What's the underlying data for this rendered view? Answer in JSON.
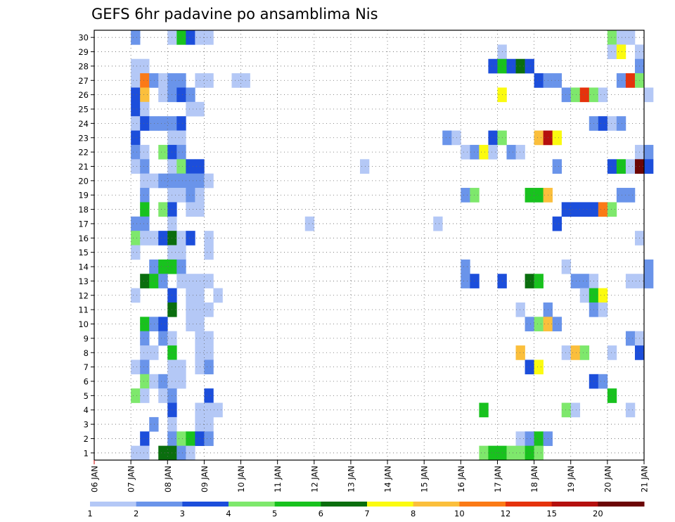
{
  "chart_data": {
    "type": "heatmap",
    "title": "GEFS 6hr padavine po ansamblima Nis",
    "xlabel": "",
    "ylabel": "",
    "x_ticks": [
      "06 JAN",
      "07 JAN",
      "08 JAN",
      "09 JAN",
      "10 JAN",
      "11 JAN",
      "12 JAN",
      "13 JAN",
      "14 JAN",
      "15 JAN",
      "16 JAN",
      "17 JAN",
      "18 JAN",
      "19 JAN",
      "20 JAN",
      "21 JAN"
    ],
    "y_ticks": [
      "1",
      "2",
      "3",
      "4",
      "5",
      "6",
      "7",
      "8",
      "9",
      "10",
      "11",
      "12",
      "13",
      "14",
      "15",
      "16",
      "17",
      "18",
      "19",
      "20",
      "21",
      "22",
      "23",
      "24",
      "25",
      "26",
      "27",
      "28",
      "29",
      "30"
    ],
    "xlim": [
      0,
      60
    ],
    "ylim": [
      0,
      30
    ],
    "x_unit": "6-hour steps from 06 JAN 00Z",
    "grid": true,
    "colorbar_position": "bottom",
    "colorbar": {
      "labels": [
        "1",
        "2",
        "3",
        "4",
        "5",
        "6",
        "7",
        "8",
        "10",
        "12",
        "15",
        "20"
      ],
      "colors": [
        "#b4c8f6",
        "#6a94ea",
        "#1c4edb",
        "#7ee86c",
        "#18c21e",
        "#0a6e0e",
        "#fbfb10",
        "#fbbf3c",
        "#fb7a16",
        "#e5320c",
        "#b5100e",
        "#6c0606"
      ]
    },
    "cells": [
      [
        4,
        30,
        "#6a94ea"
      ],
      [
        8,
        30,
        "#b4c8f6"
      ],
      [
        9,
        30,
        "#18c21e"
      ],
      [
        10,
        30,
        "#1c4edb"
      ],
      [
        11,
        30,
        "#b4c8f6"
      ],
      [
        12,
        30,
        "#b4c8f6"
      ],
      [
        56,
        30,
        "#7ee86c"
      ],
      [
        57,
        30,
        "#b4c8f6"
      ],
      [
        58,
        30,
        "#b4c8f6"
      ],
      [
        44,
        29,
        "#b4c8f6"
      ],
      [
        56,
        29,
        "#b4c8f6"
      ],
      [
        57,
        29,
        "#fbfb10"
      ],
      [
        59,
        29,
        "#b4c8f6"
      ],
      [
        4,
        28,
        "#b4c8f6"
      ],
      [
        5,
        28,
        "#b4c8f6"
      ],
      [
        43,
        28,
        "#1c4edb"
      ],
      [
        44,
        28,
        "#18c21e"
      ],
      [
        45,
        28,
        "#1c4edb"
      ],
      [
        46,
        28,
        "#0a6e0e"
      ],
      [
        47,
        28,
        "#1c4edb"
      ],
      [
        59,
        28,
        "#6a94ea"
      ],
      [
        4,
        27,
        "#b4c8f6"
      ],
      [
        5,
        27,
        "#fb7a16"
      ],
      [
        6,
        27,
        "#6a94ea"
      ],
      [
        7,
        27,
        "#b4c8f6"
      ],
      [
        8,
        27,
        "#6a94ea"
      ],
      [
        9,
        27,
        "#6a94ea"
      ],
      [
        11,
        27,
        "#b4c8f6"
      ],
      [
        12,
        27,
        "#b4c8f6"
      ],
      [
        15,
        27,
        "#b4c8f6"
      ],
      [
        16,
        27,
        "#b4c8f6"
      ],
      [
        48,
        27,
        "#1c4edb"
      ],
      [
        49,
        27,
        "#6a94ea"
      ],
      [
        50,
        27,
        "#6a94ea"
      ],
      [
        57,
        27,
        "#6a94ea"
      ],
      [
        58,
        27,
        "#e5320c"
      ],
      [
        59,
        27,
        "#7ee86c"
      ],
      [
        4,
        26,
        "#1c4edb"
      ],
      [
        5,
        26,
        "#fbbf3c"
      ],
      [
        7,
        26,
        "#b4c8f6"
      ],
      [
        8,
        26,
        "#6a94ea"
      ],
      [
        9,
        26,
        "#1c4edb"
      ],
      [
        10,
        26,
        "#6a94ea"
      ],
      [
        44,
        26,
        "#fbfb10"
      ],
      [
        51,
        26,
        "#6a94ea"
      ],
      [
        52,
        26,
        "#7ee86c"
      ],
      [
        53,
        26,
        "#e5320c"
      ],
      [
        54,
        26,
        "#7ee86c"
      ],
      [
        55,
        26,
        "#b4c8f6"
      ],
      [
        60,
        26,
        "#b4c8f6"
      ],
      [
        4,
        25,
        "#1c4edb"
      ],
      [
        5,
        25,
        "#b4c8f6"
      ],
      [
        10,
        25,
        "#b4c8f6"
      ],
      [
        11,
        25,
        "#b4c8f6"
      ],
      [
        4,
        24,
        "#b4c8f6"
      ],
      [
        5,
        24,
        "#1c4edb"
      ],
      [
        6,
        24,
        "#6a94ea"
      ],
      [
        7,
        24,
        "#6a94ea"
      ],
      [
        8,
        24,
        "#6a94ea"
      ],
      [
        9,
        24,
        "#1c4edb"
      ],
      [
        54,
        24,
        "#6a94ea"
      ],
      [
        55,
        24,
        "#1c4edb"
      ],
      [
        56,
        24,
        "#b4c8f6"
      ],
      [
        57,
        24,
        "#6a94ea"
      ],
      [
        4,
        23,
        "#1c4edb"
      ],
      [
        8,
        23,
        "#b4c8f6"
      ],
      [
        9,
        23,
        "#b4c8f6"
      ],
      [
        38,
        23,
        "#6a94ea"
      ],
      [
        39,
        23,
        "#b4c8f6"
      ],
      [
        43,
        23,
        "#1c4edb"
      ],
      [
        44,
        23,
        "#7ee86c"
      ],
      [
        48,
        23,
        "#fbbf3c"
      ],
      [
        49,
        23,
        "#b5100e"
      ],
      [
        50,
        23,
        "#fbfb10"
      ],
      [
        4,
        22,
        "#6a94ea"
      ],
      [
        5,
        22,
        "#b4c8f6"
      ],
      [
        7,
        22,
        "#7ee86c"
      ],
      [
        8,
        22,
        "#1c4edb"
      ],
      [
        9,
        22,
        "#6a94ea"
      ],
      [
        40,
        22,
        "#b4c8f6"
      ],
      [
        41,
        22,
        "#6a94ea"
      ],
      [
        42,
        22,
        "#fbfb10"
      ],
      [
        43,
        22,
        "#b4c8f6"
      ],
      [
        45,
        22,
        "#6a94ea"
      ],
      [
        46,
        22,
        "#b4c8f6"
      ],
      [
        59,
        22,
        "#b4c8f6"
      ],
      [
        60,
        22,
        "#6a94ea"
      ],
      [
        4,
        21,
        "#b4c8f6"
      ],
      [
        5,
        21,
        "#6a94ea"
      ],
      [
        8,
        21,
        "#b4c8f6"
      ],
      [
        9,
        21,
        "#7ee86c"
      ],
      [
        10,
        21,
        "#1c4edb"
      ],
      [
        11,
        21,
        "#1c4edb"
      ],
      [
        29,
        21,
        "#b4c8f6"
      ],
      [
        50,
        21,
        "#6a94ea"
      ],
      [
        56,
        21,
        "#1c4edb"
      ],
      [
        57,
        21,
        "#18c21e"
      ],
      [
        58,
        21,
        "#b4c8f6"
      ],
      [
        59,
        21,
        "#6c0606"
      ],
      [
        60,
        21,
        "#1c4edb"
      ],
      [
        5,
        20,
        "#b4c8f6"
      ],
      [
        6,
        20,
        "#b4c8f6"
      ],
      [
        7,
        20,
        "#6a94ea"
      ],
      [
        8,
        20,
        "#6a94ea"
      ],
      [
        9,
        20,
        "#6a94ea"
      ],
      [
        10,
        20,
        "#6a94ea"
      ],
      [
        11,
        20,
        "#6a94ea"
      ],
      [
        12,
        20,
        "#b4c8f6"
      ],
      [
        5,
        19,
        "#6a94ea"
      ],
      [
        8,
        19,
        "#b4c8f6"
      ],
      [
        9,
        19,
        "#b4c8f6"
      ],
      [
        10,
        19,
        "#6a94ea"
      ],
      [
        11,
        19,
        "#b4c8f6"
      ],
      [
        40,
        19,
        "#6a94ea"
      ],
      [
        41,
        19,
        "#7ee86c"
      ],
      [
        47,
        19,
        "#18c21e"
      ],
      [
        48,
        19,
        "#18c21e"
      ],
      [
        49,
        19,
        "#fbbf3c"
      ],
      [
        57,
        19,
        "#6a94ea"
      ],
      [
        58,
        19,
        "#6a94ea"
      ],
      [
        5,
        18,
        "#18c21e"
      ],
      [
        7,
        18,
        "#7ee86c"
      ],
      [
        8,
        18,
        "#1c4edb"
      ],
      [
        10,
        18,
        "#b4c8f6"
      ],
      [
        11,
        18,
        "#b4c8f6"
      ],
      [
        51,
        18,
        "#1c4edb"
      ],
      [
        52,
        18,
        "#1c4edb"
      ],
      [
        53,
        18,
        "#1c4edb"
      ],
      [
        54,
        18,
        "#1c4edb"
      ],
      [
        55,
        18,
        "#fb7a16"
      ],
      [
        56,
        18,
        "#7ee86c"
      ],
      [
        4,
        17,
        "#6a94ea"
      ],
      [
        5,
        17,
        "#6a94ea"
      ],
      [
        8,
        17,
        "#b4c8f6"
      ],
      [
        23,
        17,
        "#b4c8f6"
      ],
      [
        37,
        17,
        "#b4c8f6"
      ],
      [
        50,
        17,
        "#1c4edb"
      ],
      [
        4,
        16,
        "#7ee86c"
      ],
      [
        5,
        16,
        "#b4c8f6"
      ],
      [
        6,
        16,
        "#b4c8f6"
      ],
      [
        7,
        16,
        "#1c4edb"
      ],
      [
        8,
        16,
        "#0a6e0e"
      ],
      [
        9,
        16,
        "#b4c8f6"
      ],
      [
        10,
        16,
        "#1c4edb"
      ],
      [
        12,
        16,
        "#b4c8f6"
      ],
      [
        59,
        16,
        "#b4c8f6"
      ],
      [
        4,
        15,
        "#b4c8f6"
      ],
      [
        8,
        15,
        "#b4c8f6"
      ],
      [
        9,
        15,
        "#b4c8f6"
      ],
      [
        12,
        15,
        "#b4c8f6"
      ],
      [
        6,
        14,
        "#6a94ea"
      ],
      [
        7,
        14,
        "#18c21e"
      ],
      [
        8,
        14,
        "#18c21e"
      ],
      [
        9,
        14,
        "#6a94ea"
      ],
      [
        40,
        14,
        "#6a94ea"
      ],
      [
        51,
        14,
        "#b4c8f6"
      ],
      [
        60,
        14,
        "#6a94ea"
      ],
      [
        5,
        13,
        "#0a6e0e"
      ],
      [
        6,
        13,
        "#18c21e"
      ],
      [
        7,
        13,
        "#6a94ea"
      ],
      [
        9,
        13,
        "#b4c8f6"
      ],
      [
        10,
        13,
        "#b4c8f6"
      ],
      [
        11,
        13,
        "#b4c8f6"
      ],
      [
        12,
        13,
        "#b4c8f6"
      ],
      [
        40,
        13,
        "#6a94ea"
      ],
      [
        41,
        13,
        "#1c4edb"
      ],
      [
        44,
        13,
        "#1c4edb"
      ],
      [
        47,
        13,
        "#0a6e0e"
      ],
      [
        48,
        13,
        "#18c21e"
      ],
      [
        52,
        13,
        "#6a94ea"
      ],
      [
        53,
        13,
        "#6a94ea"
      ],
      [
        54,
        13,
        "#b4c8f6"
      ],
      [
        58,
        13,
        "#b4c8f6"
      ],
      [
        59,
        13,
        "#b4c8f6"
      ],
      [
        60,
        13,
        "#6a94ea"
      ],
      [
        4,
        12,
        "#b4c8f6"
      ],
      [
        8,
        12,
        "#1c4edb"
      ],
      [
        10,
        12,
        "#b4c8f6"
      ],
      [
        11,
        12,
        "#b4c8f6"
      ],
      [
        13,
        12,
        "#b4c8f6"
      ],
      [
        53,
        12,
        "#b4c8f6"
      ],
      [
        54,
        12,
        "#18c21e"
      ],
      [
        55,
        12,
        "#fbfb10"
      ],
      [
        8,
        11,
        "#0a6e0e"
      ],
      [
        10,
        11,
        "#b4c8f6"
      ],
      [
        11,
        11,
        "#b4c8f6"
      ],
      [
        12,
        11,
        "#b4c8f6"
      ],
      [
        46,
        11,
        "#b4c8f6"
      ],
      [
        49,
        11,
        "#6a94ea"
      ],
      [
        54,
        11,
        "#6a94ea"
      ],
      [
        55,
        11,
        "#b4c8f6"
      ],
      [
        5,
        10,
        "#18c21e"
      ],
      [
        6,
        10,
        "#6a94ea"
      ],
      [
        7,
        10,
        "#1c4edb"
      ],
      [
        10,
        10,
        "#b4c8f6"
      ],
      [
        11,
        10,
        "#b4c8f6"
      ],
      [
        47,
        10,
        "#6a94ea"
      ],
      [
        48,
        10,
        "#7ee86c"
      ],
      [
        49,
        10,
        "#fbbf3c"
      ],
      [
        50,
        10,
        "#6a94ea"
      ],
      [
        5,
        9,
        "#6a94ea"
      ],
      [
        7,
        9,
        "#6a94ea"
      ],
      [
        8,
        9,
        "#b4c8f6"
      ],
      [
        11,
        9,
        "#b4c8f6"
      ],
      [
        12,
        9,
        "#b4c8f6"
      ],
      [
        58,
        9,
        "#6a94ea"
      ],
      [
        59,
        9,
        "#b4c8f6"
      ],
      [
        5,
        8,
        "#b4c8f6"
      ],
      [
        6,
        8,
        "#b4c8f6"
      ],
      [
        8,
        8,
        "#18c21e"
      ],
      [
        11,
        8,
        "#b4c8f6"
      ],
      [
        12,
        8,
        "#b4c8f6"
      ],
      [
        46,
        8,
        "#fbbf3c"
      ],
      [
        51,
        8,
        "#b4c8f6"
      ],
      [
        52,
        8,
        "#fbbf3c"
      ],
      [
        53,
        8,
        "#7ee86c"
      ],
      [
        56,
        8,
        "#b4c8f6"
      ],
      [
        59,
        8,
        "#1c4edb"
      ],
      [
        4,
        7,
        "#b4c8f6"
      ],
      [
        5,
        7,
        "#6a94ea"
      ],
      [
        8,
        7,
        "#b4c8f6"
      ],
      [
        9,
        7,
        "#b4c8f6"
      ],
      [
        11,
        7,
        "#b4c8f6"
      ],
      [
        12,
        7,
        "#6a94ea"
      ],
      [
        47,
        7,
        "#1c4edb"
      ],
      [
        48,
        7,
        "#fbfb10"
      ],
      [
        5,
        6,
        "#7ee86c"
      ],
      [
        6,
        6,
        "#b4c8f6"
      ],
      [
        7,
        6,
        "#6a94ea"
      ],
      [
        8,
        6,
        "#b4c8f6"
      ],
      [
        9,
        6,
        "#b4c8f6"
      ],
      [
        54,
        6,
        "#1c4edb"
      ],
      [
        55,
        6,
        "#6a94ea"
      ],
      [
        4,
        5,
        "#7ee86c"
      ],
      [
        5,
        5,
        "#b4c8f6"
      ],
      [
        7,
        5,
        "#b4c8f6"
      ],
      [
        8,
        5,
        "#6a94ea"
      ],
      [
        12,
        5,
        "#1c4edb"
      ],
      [
        56,
        5,
        "#18c21e"
      ],
      [
        8,
        4,
        "#1c4edb"
      ],
      [
        11,
        4,
        "#b4c8f6"
      ],
      [
        12,
        4,
        "#b4c8f6"
      ],
      [
        13,
        4,
        "#b4c8f6"
      ],
      [
        42,
        4,
        "#18c21e"
      ],
      [
        51,
        4,
        "#7ee86c"
      ],
      [
        52,
        4,
        "#b4c8f6"
      ],
      [
        58,
        4,
        "#b4c8f6"
      ],
      [
        6,
        3,
        "#6a94ea"
      ],
      [
        8,
        3,
        "#b4c8f6"
      ],
      [
        11,
        3,
        "#b4c8f6"
      ],
      [
        12,
        3,
        "#b4c8f6"
      ],
      [
        5,
        2,
        "#1c4edb"
      ],
      [
        8,
        2,
        "#6a94ea"
      ],
      [
        9,
        2,
        "#7ee86c"
      ],
      [
        10,
        2,
        "#18c21e"
      ],
      [
        11,
        2,
        "#1c4edb"
      ],
      [
        12,
        2,
        "#6a94ea"
      ],
      [
        46,
        2,
        "#b4c8f6"
      ],
      [
        47,
        2,
        "#6a94ea"
      ],
      [
        48,
        2,
        "#18c21e"
      ],
      [
        49,
        2,
        "#6a94ea"
      ],
      [
        4,
        1,
        "#b4c8f6"
      ],
      [
        5,
        1,
        "#b4c8f6"
      ],
      [
        7,
        1,
        "#0a6e0e"
      ],
      [
        8,
        1,
        "#0a6e0e"
      ],
      [
        9,
        1,
        "#6a94ea"
      ],
      [
        10,
        1,
        "#b4c8f6"
      ],
      [
        42,
        1,
        "#7ee86c"
      ],
      [
        43,
        1,
        "#18c21e"
      ],
      [
        44,
        1,
        "#18c21e"
      ],
      [
        45,
        1,
        "#7ee86c"
      ],
      [
        46,
        1,
        "#7ee86c"
      ],
      [
        47,
        1,
        "#18c21e"
      ],
      [
        48,
        1,
        "#7ee86c"
      ]
    ]
  }
}
